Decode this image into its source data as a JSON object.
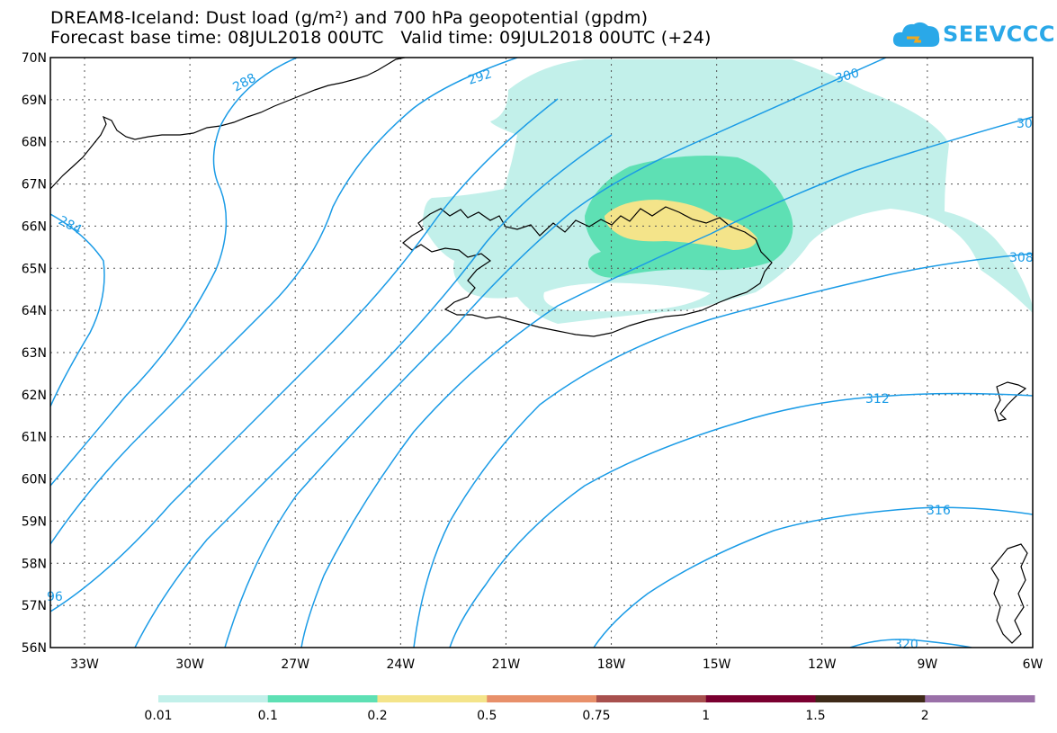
{
  "title": {
    "line1": "DREAM8-Iceland: Dust load (g/m²) and 700 hPa geopotential (gpdm)",
    "line2": "Forecast base time: 08JUL2018 00UTC   Valid time: 09JUL2018 00UTC (+24)"
  },
  "logo": {
    "text": "SEEVCCC",
    "icon": "cloud-icon",
    "color": "#2aa8e8"
  },
  "map": {
    "region": "Iceland and surrounding North Atlantic",
    "lat_labels": [
      "70N",
      "69N",
      "68N",
      "67N",
      "66N",
      "65N",
      "64N",
      "63N",
      "62N",
      "61N",
      "60N",
      "59N",
      "58N",
      "57N",
      "56N"
    ],
    "lon_labels": [
      "33W",
      "30W",
      "27W",
      "24W",
      "21W",
      "18W",
      "15W",
      "12W",
      "9W",
      "6W"
    ],
    "contour_color": "#1a9be6",
    "contour_labels": [
      "288",
      "292",
      "300",
      "30",
      "284",
      "308",
      "312",
      "316",
      "96",
      "320"
    ],
    "contour_values_gpdm": [
      284,
      288,
      292,
      296,
      300,
      304,
      308,
      312,
      316,
      320
    ]
  },
  "legend": {
    "labels": [
      "0.01",
      "0.1",
      "0.2",
      "0.5",
      "0.75",
      "1",
      "1.5",
      "2"
    ],
    "colors": [
      "#c2f0ea",
      "#5ee0b4",
      "#f4e48a",
      "#e8906a",
      "#a8504e",
      "#7a0030",
      "#3e2a18",
      "#9a70a8"
    ]
  }
}
